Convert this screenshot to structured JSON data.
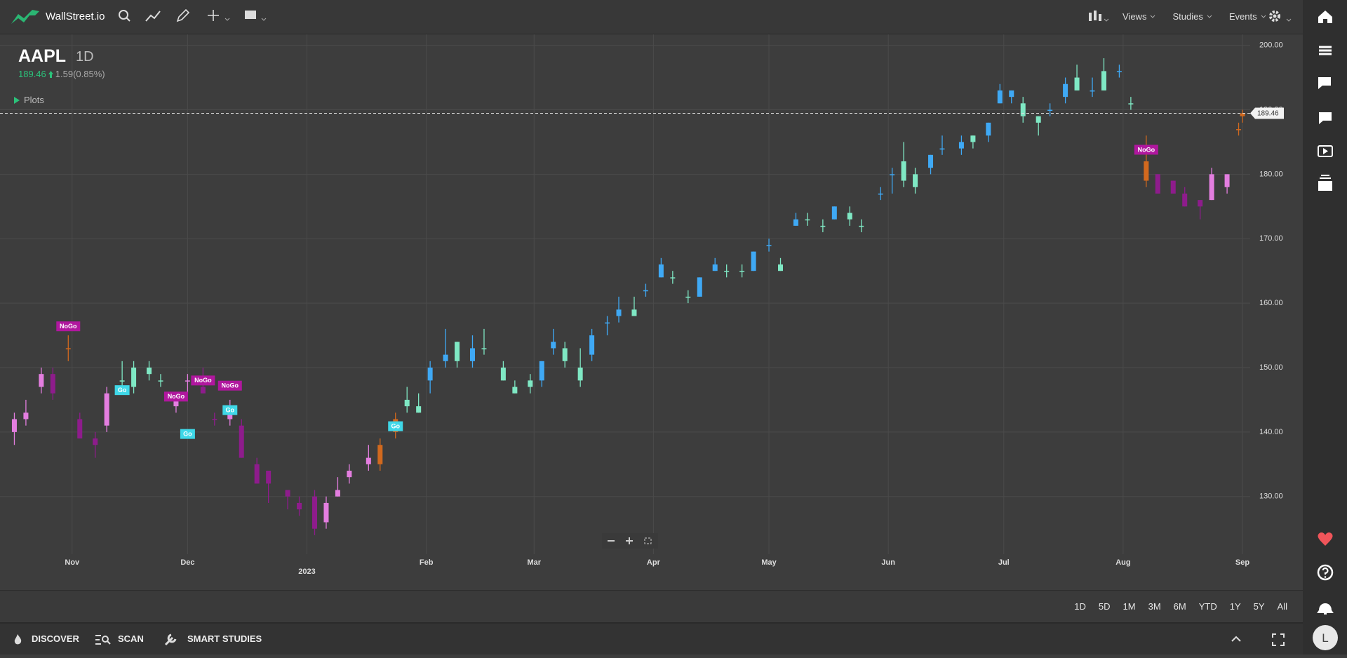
{
  "topbar": {
    "brand": "WallStreet.io",
    "menus": [
      "Views",
      "Studies",
      "Events"
    ]
  },
  "header": {
    "symbol": "AAPL",
    "interval": "1D",
    "price": 189.46,
    "change": "1.59(0.85%)"
  },
  "plots_label": "Plots",
  "chart_data": {
    "type": "candlestick",
    "xlim": [
      "2022-10-14",
      "2023-09-03"
    ],
    "xticks": [
      {
        "value": "2022-11-01",
        "label": "Nov"
      },
      {
        "value": "2022-12-01",
        "label": "Dec"
      },
      {
        "value": "2023-01-01",
        "label": "2023"
      },
      {
        "value": "2023-02-01",
        "label": "Feb"
      },
      {
        "value": "2023-03-01",
        "label": "Mar"
      },
      {
        "value": "2023-04-01",
        "label": "Apr"
      },
      {
        "value": "2023-05-01",
        "label": "May"
      },
      {
        "value": "2023-06-01",
        "label": "Jun"
      },
      {
        "value": "2023-07-01",
        "label": "Jul"
      },
      {
        "value": "2023-08-01",
        "label": "Aug"
      },
      {
        "value": "2023-09-01",
        "label": "Sep"
      }
    ],
    "ylim": [
      121.7,
      201.7
    ],
    "yticks": [
      {
        "value": 130,
        "label": "130.00"
      },
      {
        "value": 140,
        "label": "140.00"
      },
      {
        "value": 150,
        "label": "150.00"
      },
      {
        "value": 160,
        "label": "160.00"
      },
      {
        "value": 170,
        "label": "170.00"
      },
      {
        "value": 180,
        "label": "180.00"
      },
      {
        "value": 190,
        "label": "190.00"
      },
      {
        "value": 200,
        "label": "200.00"
      }
    ],
    "grid": true,
    "dates": [
      "2022-10-17",
      "2022-10-20",
      "2022-10-24",
      "2022-10-27",
      "2022-10-31",
      "2022-11-03",
      "2022-11-07",
      "2022-11-10",
      "2022-11-14",
      "2022-11-17",
      "2022-11-21",
      "2022-11-24",
      "2022-11-28",
      "2022-12-01",
      "2022-12-05",
      "2022-12-08",
      "2022-12-12",
      "2022-12-15",
      "2022-12-19",
      "2022-12-22",
      "2022-12-27",
      "2022-12-30",
      "2023-01-03",
      "2023-01-06",
      "2023-01-09",
      "2023-01-12",
      "2023-01-17",
      "2023-01-20",
      "2023-01-24",
      "2023-01-27",
      "2023-01-30",
      "2023-02-02",
      "2023-02-06",
      "2023-02-09",
      "2023-02-13",
      "2023-02-16",
      "2023-02-21",
      "2023-02-24",
      "2023-02-28",
      "2023-03-03",
      "2023-03-06",
      "2023-03-09",
      "2023-03-13",
      "2023-03-16",
      "2023-03-20",
      "2023-03-23",
      "2023-03-27",
      "2023-03-30",
      "2023-04-03",
      "2023-04-06",
      "2023-04-10",
      "2023-04-13",
      "2023-04-17",
      "2023-04-20",
      "2023-04-24",
      "2023-04-27",
      "2023-05-01",
      "2023-05-04",
      "2023-05-08",
      "2023-05-11",
      "2023-05-15",
      "2023-05-18",
      "2023-05-22",
      "2023-05-25",
      "2023-05-30",
      "2023-06-02",
      "2023-06-05",
      "2023-06-08",
      "2023-06-12",
      "2023-06-15",
      "2023-06-20",
      "2023-06-23",
      "2023-06-27",
      "2023-06-30",
      "2023-07-03",
      "2023-07-06",
      "2023-07-10",
      "2023-07-13",
      "2023-07-17",
      "2023-07-20",
      "2023-07-24",
      "2023-07-27",
      "2023-07-31",
      "2023-08-03",
      "2023-08-07",
      "2023-08-10",
      "2023-08-14",
      "2023-08-17",
      "2023-08-21",
      "2023-08-24",
      "2023-08-28",
      "2023-08-31",
      "2023-09-01"
    ],
    "open": [
      140,
      142,
      147,
      149,
      153,
      142,
      138,
      141,
      148,
      147,
      150,
      148,
      145,
      148,
      147,
      142,
      142,
      141,
      135,
      134,
      131,
      128,
      130,
      126,
      130,
      133,
      135,
      135,
      140,
      144,
      144,
      148,
      152,
      154,
      151,
      153,
      150,
      147,
      148,
      148,
      153,
      153,
      148,
      152,
      157,
      158,
      159,
      162,
      164,
      164,
      161,
      161,
      166,
      165,
      165,
      165,
      169,
      166,
      172,
      173,
      172,
      173,
      174,
      172,
      177,
      180,
      182,
      178,
      181,
      184,
      184,
      185,
      186,
      191,
      193,
      189,
      189,
      190,
      192,
      195,
      193,
      196,
      196,
      191,
      182,
      180,
      177,
      177,
      175,
      180,
      178,
      187,
      189
    ],
    "high": [
      143,
      145,
      150,
      150,
      155,
      143,
      140,
      147,
      151,
      151,
      151,
      149,
      146,
      149,
      150,
      143,
      145,
      142,
      136,
      134,
      131,
      130,
      131,
      130,
      133,
      135,
      138,
      139,
      143,
      147,
      146,
      151,
      156,
      154,
      155,
      156,
      151,
      148,
      149,
      151,
      156,
      154,
      153,
      156,
      158,
      161,
      161,
      163,
      167,
      165,
      162,
      164,
      167,
      166,
      166,
      168,
      170,
      167,
      174,
      174,
      173,
      175,
      175,
      173,
      178,
      181,
      185,
      181,
      183,
      186,
      186,
      186,
      188,
      194,
      193,
      192,
      189,
      191,
      195,
      197,
      195,
      198,
      197,
      192,
      186,
      180,
      179,
      178,
      176,
      181,
      180,
      188,
      190
    ],
    "low": [
      138,
      141,
      146,
      145,
      151,
      139,
      136,
      140,
      147,
      146,
      148,
      147,
      143,
      146,
      146,
      141,
      141,
      136,
      132,
      129,
      128,
      127,
      124,
      125,
      130,
      132,
      134,
      134,
      139,
      143,
      143,
      146,
      150,
      150,
      150,
      152,
      148,
      146,
      146,
      147,
      152,
      150,
      147,
      151,
      155,
      157,
      158,
      161,
      164,
      163,
      160,
      161,
      165,
      164,
      164,
      165,
      168,
      165,
      172,
      172,
      171,
      173,
      172,
      171,
      176,
      177,
      178,
      177,
      180,
      183,
      183,
      184,
      185,
      191,
      191,
      188,
      186,
      189,
      191,
      193,
      192,
      193,
      195,
      190,
      178,
      177,
      177,
      175,
      173,
      176,
      177,
      186,
      188
    ],
    "close": [
      142,
      143,
      149,
      146,
      153,
      139,
      139,
      146,
      148,
      150,
      149,
      148,
      144,
      148,
      146,
      142,
      144,
      136,
      132,
      132,
      130,
      129,
      125,
      129,
      131,
      134,
      136,
      138,
      142,
      145,
      143,
      150,
      151,
      151,
      153,
      153,
      148,
      146,
      147,
      151,
      154,
      151,
      150,
      155,
      157,
      159,
      158,
      162,
      166,
      164,
      161,
      164,
      165,
      165,
      165,
      168,
      169,
      165,
      173,
      173,
      172,
      175,
      173,
      172,
      177,
      180,
      179,
      180,
      183,
      184,
      185,
      186,
      188,
      193,
      192,
      191,
      188,
      190,
      194,
      193,
      193,
      193,
      196,
      191,
      179,
      177,
      179,
      175,
      176,
      176,
      180,
      187,
      189.46
    ],
    "colors": [
      "#e47ee0",
      "#e47ee0",
      "#e47ee0",
      "#8e1c8c",
      "#d2691e",
      "#8e1c8c",
      "#8e1c8c",
      "#e47ee0",
      "#7fe8c4",
      "#7fe8c4",
      "#7fe8c4",
      "#7fe8c4",
      "#e47ee0",
      "#e47ee0",
      "#8e1c8c",
      "#8e1c8c",
      "#e47ee0",
      "#8e1c8c",
      "#8e1c8c",
      "#8e1c8c",
      "#8e1c8c",
      "#8e1c8c",
      "#8e1c8c",
      "#e47ee0",
      "#e47ee0",
      "#e47ee0",
      "#e47ee0",
      "#d2691e",
      "#d2691e",
      "#7fe8c4",
      "#7fe8c4",
      "#3fa9f5",
      "#3fa9f5",
      "#7fe8c4",
      "#3fa9f5",
      "#7fe8c4",
      "#7fe8c4",
      "#7fe8c4",
      "#7fe8c4",
      "#3fa9f5",
      "#3fa9f5",
      "#7fe8c4",
      "#7fe8c4",
      "#3fa9f5",
      "#3fa9f5",
      "#3fa9f5",
      "#7fe8c4",
      "#3fa9f5",
      "#3fa9f5",
      "#7fe8c4",
      "#7fe8c4",
      "#3fa9f5",
      "#3fa9f5",
      "#7fe8c4",
      "#7fe8c4",
      "#3fa9f5",
      "#3fa9f5",
      "#7fe8c4",
      "#3fa9f5",
      "#7fe8c4",
      "#7fe8c4",
      "#3fa9f5",
      "#7fe8c4",
      "#7fe8c4",
      "#3fa9f5",
      "#3fa9f5",
      "#7fe8c4",
      "#7fe8c4",
      "#3fa9f5",
      "#3fa9f5",
      "#3fa9f5",
      "#7fe8c4",
      "#3fa9f5",
      "#3fa9f5",
      "#3fa9f5",
      "#7fe8c4",
      "#7fe8c4",
      "#3fa9f5",
      "#3fa9f5",
      "#7fe8c4",
      "#3fa9f5",
      "#7fe8c4",
      "#3fa9f5",
      "#7fe8c4",
      "#d2691e",
      "#8e1c8c",
      "#8e1c8c",
      "#8e1c8c",
      "#8e1c8c",
      "#e47ee0",
      "#e47ee0",
      "#d2691e",
      "#d2691e"
    ],
    "last_price": 189.46,
    "annotations": [
      {
        "text": "NoGo",
        "date": "2022-10-31",
        "price": 156.4,
        "color": "#b0179e"
      },
      {
        "text": "Go",
        "date": "2022-11-14",
        "price": 146.5,
        "color": "#3fd8e8"
      },
      {
        "text": "NoGo",
        "date": "2022-11-28",
        "price": 145.5,
        "color": "#b0179e"
      },
      {
        "text": "Go",
        "date": "2022-12-01",
        "price": 139.7,
        "color": "#3fd8e8"
      },
      {
        "text": "NoGo",
        "date": "2022-12-05",
        "price": 148,
        "color": "#b0179e"
      },
      {
        "text": "NoGo",
        "date": "2022-12-12",
        "price": 147.2,
        "color": "#b0179e"
      },
      {
        "text": "Go",
        "date": "2022-12-12",
        "price": 143.4,
        "color": "#3fd8e8"
      },
      {
        "text": "Go",
        "date": "2023-01-24",
        "price": 140.9,
        "color": "#3fd8e8"
      },
      {
        "text": "NoGo",
        "date": "2023-08-07",
        "price": 183.8,
        "color": "#b0179e"
      }
    ]
  },
  "range_buttons": [
    "1D",
    "5D",
    "1M",
    "3M",
    "6M",
    "YTD",
    "1Y",
    "5Y",
    "All"
  ],
  "bottom_nav": [
    "DISCOVER",
    "SCAN",
    "SMART STUDIES"
  ],
  "user_initial": "L"
}
